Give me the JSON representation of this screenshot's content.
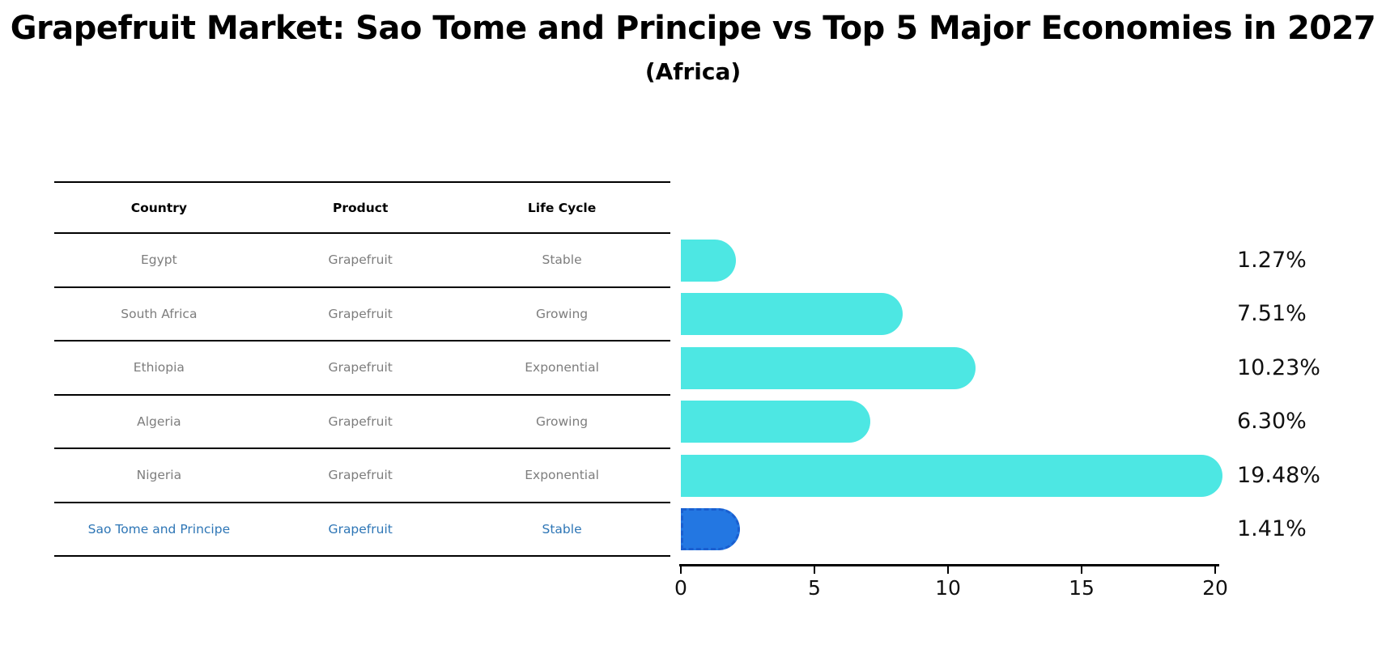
{
  "header": {
    "title": "Grapefruit Market: Sao Tome and Principe vs Top 5 Major Economies in 2027",
    "subtitle": "(Africa)"
  },
  "table": {
    "columns": [
      "Country",
      "Product",
      "Life Cycle"
    ],
    "rows": [
      {
        "country": "Egypt",
        "product": "Grapefruit",
        "life_cycle": "Stable"
      },
      {
        "country": "South Africa",
        "product": "Grapefruit",
        "life_cycle": "Growing"
      },
      {
        "country": "Ethiopia",
        "product": "Grapefruit",
        "life_cycle": "Exponential"
      },
      {
        "country": "Algeria",
        "product": "Grapefruit",
        "life_cycle": "Growing"
      },
      {
        "country": "Nigeria",
        "product": "Grapefruit",
        "life_cycle": "Exponential"
      },
      {
        "country": "Sao Tome and Principe",
        "product": "Grapefruit",
        "life_cycle": "Stable"
      }
    ],
    "highlight_row_index": 5
  },
  "chart_data": {
    "type": "bar",
    "orientation": "horizontal",
    "title": "Grapefruit Market: Sao Tome and Principe vs Top 5 Major Economies in 2027",
    "subtitle": "(Africa)",
    "categories": [
      "Egypt",
      "South Africa",
      "Ethiopia",
      "Algeria",
      "Nigeria",
      "Sao Tome and Principe"
    ],
    "values": [
      1.27,
      7.51,
      10.23,
      6.3,
      19.48,
      1.41
    ],
    "value_labels": [
      "1.27%",
      "7.51%",
      "10.23%",
      "6.30%",
      "19.48%",
      "1.41%"
    ],
    "xticks": [
      "0",
      "5",
      "10",
      "15",
      "20"
    ],
    "xlim": [
      0,
      20
    ],
    "grid": false,
    "legend": "none",
    "highlight_index": 5
  },
  "colors": {
    "bar": "#4de7e3",
    "highlight_bar": "#2377e2",
    "highlight_bar_edge": "#1a5fd0",
    "highlight_text": "#2e76b6",
    "cell_text": "#7d7d7d",
    "axis_text": "#111111",
    "line": "#000000"
  }
}
